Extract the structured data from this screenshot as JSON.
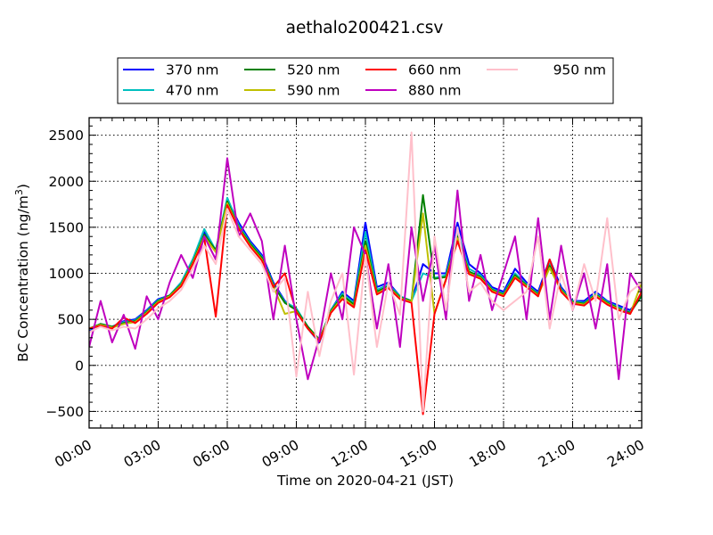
{
  "chart_data": {
    "type": "line",
    "title": "aethalo200421.csv",
    "xlabel": "Time on 2020-04-21 (JST)",
    "ylabel": "BC Concentration (ng/m",
    "ylabel_superscript": "3",
    "ylabel_suffix": ")",
    "xlim_hours": [
      0,
      24
    ],
    "ylim": [
      -680,
      2690
    ],
    "grid": true,
    "legend_placement": "top-center-outside",
    "x_ticks": [
      {
        "value": 0,
        "label": "00:00"
      },
      {
        "value": 3,
        "label": "03:00"
      },
      {
        "value": 6,
        "label": "06:00"
      },
      {
        "value": 9,
        "label": "09:00"
      },
      {
        "value": 12,
        "label": "12:00"
      },
      {
        "value": 15,
        "label": "15:00"
      },
      {
        "value": 18,
        "label": "18:00"
      },
      {
        "value": 21,
        "label": "21:00"
      },
      {
        "value": 24,
        "label": "24:00"
      }
    ],
    "y_ticks": [
      {
        "value": -500,
        "label": "−500"
      },
      {
        "value": 0,
        "label": "0"
      },
      {
        "value": 500,
        "label": "500"
      },
      {
        "value": 1000,
        "label": "1000"
      },
      {
        "value": 1500,
        "label": "1500"
      },
      {
        "value": 2000,
        "label": "2000"
      },
      {
        "value": 2500,
        "label": "2500"
      }
    ],
    "x_hours": [
      0,
      0.5,
      1,
      1.5,
      2,
      2.5,
      3,
      3.5,
      4,
      4.5,
      5,
      5.5,
      6,
      6.5,
      7,
      7.5,
      8,
      8.5,
      9,
      9.5,
      10,
      10.5,
      11,
      11.5,
      12,
      12.5,
      13,
      13.5,
      14,
      14.5,
      15,
      15.5,
      16,
      16.5,
      17,
      17.5,
      18,
      18.5,
      19,
      19.5,
      20,
      20.5,
      21,
      21.5,
      22,
      22.5,
      23,
      23.5,
      24
    ],
    "series": [
      {
        "name": "370 nm",
        "color": "#0000ff",
        "values": [
          380,
          450,
          420,
          480,
          500,
          600,
          720,
          760,
          900,
          1150,
          1450,
          1250,
          1800,
          1550,
          1350,
          1200,
          900,
          700,
          600,
          400,
          250,
          600,
          800,
          700,
          1550,
          850,
          900,
          750,
          700,
          1100,
          1000,
          1000,
          1550,
          1100,
          1000,
          850,
          800,
          1050,
          900,
          800,
          1150,
          850,
          700,
          700,
          800,
          700,
          650,
          600,
          750
        ]
      },
      {
        "name": "470 nm",
        "color": "#00bfbf",
        "values": [
          390,
          450,
          420,
          470,
          490,
          590,
          710,
          760,
          900,
          1150,
          1480,
          1250,
          1820,
          1520,
          1330,
          1180,
          880,
          690,
          620,
          420,
          280,
          600,
          780,
          680,
          1450,
          820,
          880,
          750,
          700,
          1000,
          950,
          980,
          1450,
          1050,
          980,
          830,
          780,
          1000,
          880,
          780,
          1100,
          830,
          700,
          680,
          780,
          690,
          630,
          580,
          750
        ]
      },
      {
        "name": "520 nm",
        "color": "#008000",
        "values": [
          400,
          450,
          420,
          460,
          480,
          580,
          700,
          760,
          880,
          1120,
          1420,
          1250,
          1780,
          1500,
          1320,
          1170,
          870,
          680,
          600,
          420,
          280,
          590,
          760,
          660,
          1350,
          800,
          860,
          740,
          700,
          1850,
          940,
          960,
          1400,
          1020,
          960,
          820,
          770,
          980,
          870,
          770,
          1080,
          820,
          690,
          670,
          770,
          680,
          620,
          570,
          760
        ]
      },
      {
        "name": "590 nm",
        "color": "#bfbf00",
        "values": [
          400,
          440,
          410,
          450,
          470,
          570,
          690,
          750,
          870,
          1110,
          1400,
          1230,
          1760,
          1490,
          1300,
          1150,
          860,
          560,
          590,
          400,
          270,
          580,
          740,
          640,
          1300,
          780,
          850,
          730,
          690,
          1650,
          560,
          940,
          1380,
          1000,
          950,
          810,
          760,
          960,
          860,
          760,
          1060,
          810,
          680,
          660,
          760,
          670,
          610,
          560,
          900
        ]
      },
      {
        "name": "660 nm",
        "color": "#ff0000",
        "values": [
          400,
          430,
          400,
          520,
          460,
          560,
          680,
          740,
          860,
          1100,
          1380,
          530,
          1740,
          1480,
          1290,
          1140,
          850,
          1000,
          580,
          400,
          260,
          570,
          720,
          630,
          1250,
          770,
          840,
          720,
          680,
          -530,
          560,
          930,
          1350,
          990,
          940,
          800,
          750,
          950,
          850,
          750,
          1150,
          800,
          670,
          650,
          750,
          660,
          600,
          560,
          800
        ]
      },
      {
        "name": "880 nm",
        "color": "#bf00bf",
        "values": [
          200,
          700,
          250,
          550,
          180,
          750,
          500,
          900,
          1200,
          950,
          1400,
          1150,
          2250,
          1400,
          1650,
          1350,
          500,
          1300,
          500,
          -150,
          300,
          1000,
          500,
          1500,
          1200,
          400,
          1100,
          200,
          1500,
          700,
          1300,
          500,
          1900,
          700,
          1200,
          600,
          1000,
          1400,
          500,
          1600,
          500,
          1300,
          600,
          1000,
          400,
          1100,
          -150,
          1000,
          800
        ]
      },
      {
        "name": "950 nm",
        "color": "#ffc0cb",
        "values": [
          360,
          420,
          380,
          420,
          400,
          500,
          620,
          700,
          820,
          1050,
          1300,
          1100,
          1700,
          1400,
          1250,
          1100,
          800,
          950,
          -120,
          800,
          100,
          700,
          1000,
          -100,
          1200,
          200,
          900,
          550,
          2530,
          -500,
          1400,
          600,
          1500,
          800,
          900,
          700,
          600,
          700,
          800,
          1400,
          400,
          1000,
          600,
          1100,
          700,
          1600,
          500,
          800,
          900
        ]
      }
    ]
  }
}
